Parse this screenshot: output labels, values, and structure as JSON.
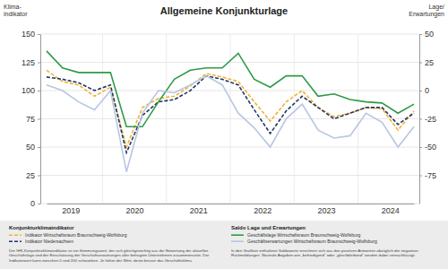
{
  "chart_data": {
    "type": "line",
    "title": "Allgemeine Konjunkturlage",
    "ylabel": "Klima-\nindikator",
    "y2label": "Lage/\nErwartungen",
    "categories": [
      null,
      "2019",
      null,
      null,
      null,
      "2020",
      null,
      null,
      null,
      "2021",
      null,
      null,
      null,
      "2022",
      null,
      null,
      null,
      "2023",
      null,
      null,
      null,
      "2024",
      null,
      null
    ],
    "ylim": [
      0,
      150
    ],
    "yticks": [
      0,
      25,
      50,
      75,
      100,
      125,
      150
    ],
    "y2lim": [
      -100,
      50
    ],
    "y2ticks": [
      -75,
      -50,
      -25,
      0,
      25,
      50
    ],
    "grid": true,
    "legend_titles": [
      "Konjunkturklimaindikator",
      "Saldo Lage und Erwartungen"
    ],
    "notes": [
      "Der IHK-Konjunkturklimaindikator ist ein Stimmungswert, der sich gleichgewichtig aus der Bewertung der aktuellen Geschäftslage und der Einschätzung der Geschäftserwartungen aller befragten Unternehmen zusammensetzt. Der Indikatorwert kann zwischen 0 und 200 schwanken. Je höher der Wert, desto besser das Geschäftsklima.",
      "In den Grafiken enthaltene Saldowerte errechnen sich aus den positiven Antworten abzüglich der negativen Rückmeldungen. Neutrale Angaben wie „befriedigend“ oder „gleichbleibend“ werden dabei vernachlässigt."
    ],
    "series": [
      {
        "name": "Indikator Wirtschaftsraum Braunschweig-Wolfsburg",
        "color": "#f2b134",
        "line_style": "dashed",
        "values": [
          118,
          108,
          105,
          95,
          103,
          50,
          85,
          93,
          95,
          104,
          115,
          112,
          108,
          90,
          73,
          90,
          100,
          85,
          77,
          80,
          85,
          84,
          65,
          82
        ]
      },
      {
        "name": "Indikator Niedersachsen",
        "color": "#1f3864",
        "line_style": "dashed",
        "values": [
          112,
          110,
          107,
          100,
          105,
          45,
          78,
          90,
          92,
          100,
          113,
          110,
          105,
          83,
          62,
          82,
          95,
          85,
          75,
          80,
          85,
          85,
          70,
          80
        ]
      },
      {
        "name": "Geschäftslage Wirtschaftsraum Braunschweig-Wolfsburg",
        "color": "#2f9a46",
        "line_style": "solid",
        "axis": "y2",
        "values": [
          35,
          20,
          16,
          16,
          16,
          -32,
          -32,
          -10,
          10,
          18,
          20,
          20,
          33,
          10,
          3,
          13,
          13,
          -5,
          -3,
          -8,
          -10,
          -11,
          -20,
          -12
        ]
      },
      {
        "name": "Geschäftserwartungen Wirtschaftsraum Braunschweig-Wolfsburg",
        "color": "#b7c6e2",
        "line_style": "solid",
        "axis": "y2",
        "values": [
          5,
          0,
          -10,
          -17,
          0,
          -72,
          -20,
          0,
          -2,
          5,
          13,
          5,
          -20,
          -33,
          -50,
          -25,
          -12,
          -35,
          -42,
          -40,
          -20,
          -28,
          -50,
          -32
        ]
      }
    ]
  }
}
